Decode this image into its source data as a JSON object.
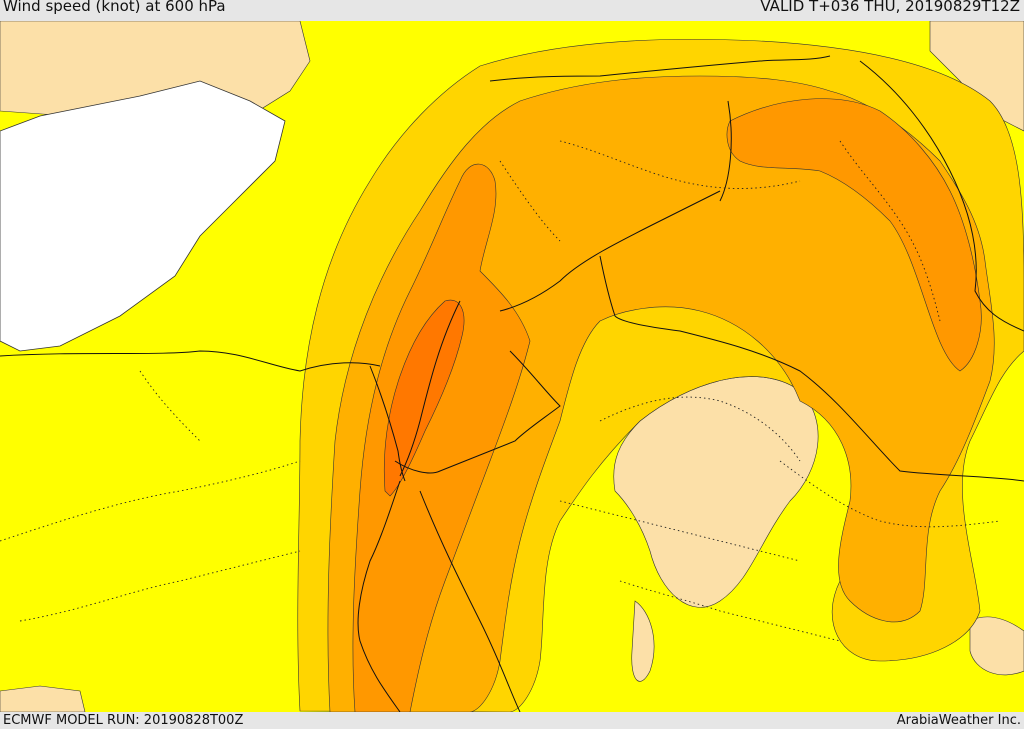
{
  "header": {
    "title": "Wind speed (knot) at 600 hPa",
    "valid": "VALID T+036 THU, 20190829T12Z"
  },
  "footer": {
    "model_run": "ECMWF MODEL RUN: 20190828T00Z",
    "credit": "ArabiaWeather Inc."
  },
  "map": {
    "fill_colors": {
      "sea": "#ffffff",
      "weak": "#fce0a8",
      "base": "#ffff00",
      "light_orange": "#ffd500",
      "orange": "#ffb000",
      "dark_orange": "#ff9800",
      "core": "#ff7800"
    },
    "line_colors": {
      "contour": "#333333",
      "border": "#111111"
    }
  }
}
